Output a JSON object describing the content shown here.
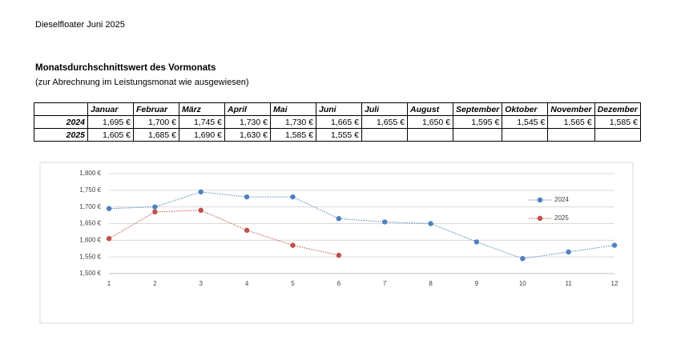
{
  "header": {
    "title": "Dieselfloater Juni 2025",
    "heading": "Monatsdurchschnittswert des Vormonats",
    "subheading": "(zur Abrechnung im Leistungsmonat wie ausgewiesen)"
  },
  "table": {
    "columns": [
      "Januar",
      "Februar",
      "März",
      "April",
      "Mai",
      "Juni",
      "Juli",
      "August",
      "September",
      "Oktober",
      "November",
      "Dezember"
    ],
    "rows": [
      {
        "label": "2024",
        "cells": [
          "1,695 €",
          "1,700 €",
          "1,745 €",
          "1,730 €",
          "1,730 €",
          "1,665 €",
          "1,655 €",
          "1,650 €",
          "1,595 €",
          "1,545 €",
          "1,565 €",
          "1,585 €"
        ]
      },
      {
        "label": "2025",
        "cells": [
          "1,605 €",
          "1,685 €",
          "1,690 €",
          "1,630 €",
          "1,585 €",
          "1,555 €"
        ]
      }
    ]
  },
  "chart_data": {
    "type": "line",
    "x": [
      1,
      2,
      3,
      4,
      5,
      6,
      7,
      8,
      9,
      10,
      11,
      12
    ],
    "xlim": [
      1,
      12
    ],
    "xticks": [
      1,
      2,
      3,
      4,
      5,
      6,
      7,
      8,
      9,
      10,
      11,
      12
    ],
    "ylim": [
      1.5,
      1.8
    ],
    "yticks": [
      {
        "value": 1.5,
        "label": "1,500 €"
      },
      {
        "value": 1.55,
        "label": "1,550 €"
      },
      {
        "value": 1.6,
        "label": "1,600 €"
      },
      {
        "value": 1.65,
        "label": "1,650 €"
      },
      {
        "value": 1.7,
        "label": "1,700 €"
      },
      {
        "value": 1.75,
        "label": "1,750 €"
      },
      {
        "value": 1.8,
        "label": "1,800 €"
      }
    ],
    "grid": true,
    "legend": "right",
    "series": [
      {
        "name": "2024",
        "color": "#4f81bd",
        "values": [
          1.695,
          1.7,
          1.745,
          1.73,
          1.73,
          1.665,
          1.655,
          1.65,
          1.595,
          1.545,
          1.565,
          1.585
        ]
      },
      {
        "name": "2025",
        "color": "#c0504d",
        "values": [
          1.605,
          1.685,
          1.69,
          1.63,
          1.585,
          1.555,
          null,
          null,
          null,
          null,
          null,
          null
        ]
      }
    ]
  }
}
